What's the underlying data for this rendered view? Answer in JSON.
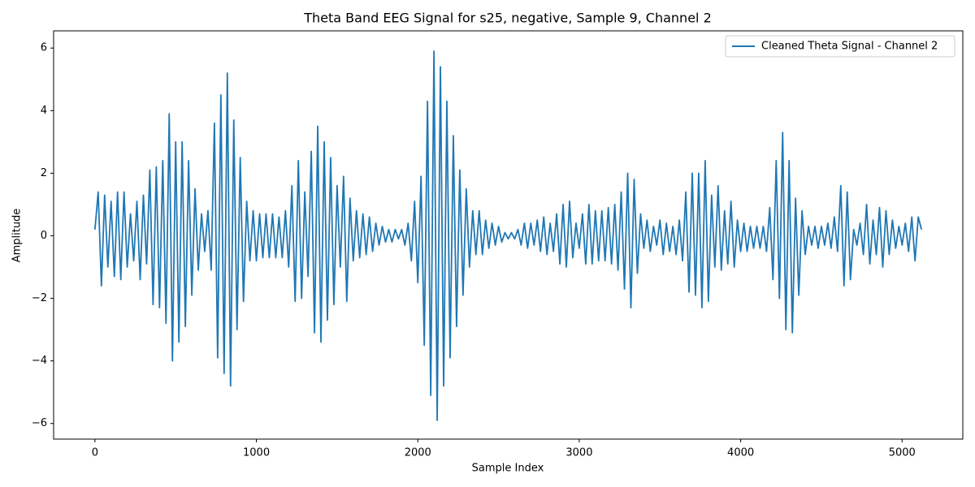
{
  "chart_data": {
    "type": "line",
    "title": "Theta Band EEG Signal for s25, negative, Sample 9, Channel 2",
    "x_label": "Sample Index",
    "y_label": "Amplitude",
    "x": [
      0,
      20,
      40,
      60,
      80,
      100,
      120,
      140,
      160,
      180,
      200,
      220,
      240,
      260,
      280,
      300,
      320,
      340,
      360,
      380,
      400,
      420,
      440,
      460,
      480,
      500,
      520,
      540,
      560,
      580,
      600,
      620,
      640,
      660,
      680,
      700,
      720,
      740,
      760,
      780,
      800,
      820,
      840,
      860,
      880,
      900,
      920,
      940,
      960,
      980,
      1000,
      1020,
      1040,
      1060,
      1080,
      1100,
      1120,
      1140,
      1160,
      1180,
      1200,
      1220,
      1240,
      1260,
      1280,
      1300,
      1320,
      1340,
      1360,
      1380,
      1400,
      1420,
      1440,
      1460,
      1480,
      1500,
      1520,
      1540,
      1560,
      1580,
      1600,
      1620,
      1640,
      1660,
      1680,
      1700,
      1720,
      1740,
      1760,
      1780,
      1800,
      1820,
      1840,
      1860,
      1880,
      1900,
      1920,
      1940,
      1960,
      1980,
      2000,
      2020,
      2040,
      2060,
      2080,
      2100,
      2120,
      2140,
      2160,
      2180,
      2200,
      2220,
      2240,
      2260,
      2280,
      2300,
      2320,
      2340,
      2360,
      2380,
      2400,
      2420,
      2440,
      2460,
      2480,
      2500,
      2520,
      2540,
      2560,
      2580,
      2600,
      2620,
      2640,
      2660,
      2680,
      2700,
      2720,
      2740,
      2760,
      2780,
      2800,
      2820,
      2840,
      2860,
      2880,
      2900,
      2920,
      2940,
      2960,
      2980,
      3000,
      3020,
      3040,
      3060,
      3080,
      3100,
      3120,
      3140,
      3160,
      3180,
      3200,
      3220,
      3240,
      3260,
      3280,
      3300,
      3320,
      3340,
      3360,
      3380,
      3400,
      3420,
      3440,
      3460,
      3480,
      3500,
      3520,
      3540,
      3560,
      3580,
      3600,
      3620,
      3640,
      3660,
      3680,
      3700,
      3720,
      3740,
      3760,
      3780,
      3800,
      3820,
      3840,
      3860,
      3880,
      3900,
      3920,
      3940,
      3960,
      3980,
      4000,
      4020,
      4040,
      4060,
      4080,
      4100,
      4120,
      4140,
      4160,
      4180,
      4200,
      4220,
      4240,
      4260,
      4280,
      4300,
      4320,
      4340,
      4360,
      4380,
      4400,
      4420,
      4440,
      4460,
      4480,
      4500,
      4520,
      4540,
      4560,
      4580,
      4600,
      4620,
      4640,
      4660,
      4680,
      4700,
      4720,
      4740,
      4760,
      4780,
      4800,
      4820,
      4840,
      4860,
      4880,
      4900,
      4920,
      4940,
      4960,
      4980,
      5000,
      5020,
      5040,
      5060,
      5080,
      5100,
      5120
    ],
    "series": [
      {
        "name": "Cleaned Theta Signal - Channel 2",
        "color": "#1f77b4",
        "values": [
          0.2,
          1.4,
          -1.6,
          1.3,
          -1.0,
          1.1,
          -1.3,
          1.4,
          -1.4,
          1.4,
          -1.0,
          0.7,
          -0.8,
          1.1,
          -1.4,
          1.3,
          -0.9,
          2.1,
          -2.2,
          2.2,
          -2.3,
          2.4,
          -2.8,
          3.9,
          -4.0,
          3.0,
          -3.4,
          3.0,
          -2.9,
          2.4,
          -1.9,
          1.5,
          -1.1,
          0.7,
          -0.5,
          0.8,
          -1.1,
          3.6,
          -3.9,
          4.5,
          -4.4,
          5.2,
          -4.8,
          3.7,
          -3.0,
          2.5,
          -2.1,
          1.1,
          -0.8,
          0.8,
          -0.8,
          0.7,
          -0.7,
          0.7,
          -0.7,
          0.7,
          -0.7,
          0.6,
          -0.7,
          0.8,
          -1.0,
          1.6,
          -2.1,
          2.4,
          -2.0,
          1.4,
          -1.3,
          2.7,
          -3.1,
          3.5,
          -3.4,
          3.0,
          -2.7,
          2.5,
          -2.2,
          1.6,
          -1.0,
          1.9,
          -2.1,
          1.2,
          -0.8,
          0.8,
          -0.7,
          0.7,
          -0.6,
          0.6,
          -0.5,
          0.4,
          -0.3,
          0.3,
          -0.2,
          0.2,
          -0.2,
          0.2,
          -0.1,
          0.2,
          -0.3,
          0.4,
          -0.8,
          1.1,
          -1.5,
          1.9,
          -3.5,
          4.3,
          -5.1,
          5.9,
          -5.9,
          5.4,
          -4.8,
          4.3,
          -3.9,
          3.2,
          -2.9,
          2.1,
          -1.9,
          1.5,
          -1.0,
          0.8,
          -0.6,
          0.8,
          -0.6,
          0.5,
          -0.4,
          0.4,
          -0.3,
          0.3,
          -0.2,
          0.1,
          -0.1,
          0.1,
          -0.1,
          0.2,
          -0.3,
          0.4,
          -0.4,
          0.4,
          -0.3,
          0.5,
          -0.5,
          0.6,
          -0.6,
          0.4,
          -0.5,
          0.7,
          -0.9,
          1.0,
          -1.0,
          1.1,
          -0.7,
          0.4,
          -0.4,
          0.7,
          -0.9,
          1.0,
          -0.9,
          0.8,
          -0.8,
          0.8,
          -0.8,
          0.9,
          -0.9,
          1.0,
          -1.1,
          1.4,
          -1.7,
          2.0,
          -2.3,
          1.8,
          -1.2,
          0.7,
          -0.4,
          0.5,
          -0.5,
          0.3,
          -0.3,
          0.5,
          -0.6,
          0.4,
          -0.5,
          0.3,
          -0.6,
          0.5,
          -0.8,
          1.4,
          -1.8,
          2.0,
          -1.9,
          2.0,
          -2.3,
          2.4,
          -2.1,
          1.3,
          -1.0,
          1.6,
          -1.1,
          0.8,
          -0.9,
          1.1,
          -1.0,
          0.5,
          -0.5,
          0.4,
          -0.5,
          0.3,
          -0.4,
          0.3,
          -0.4,
          0.3,
          -0.5,
          0.9,
          -1.4,
          2.4,
          -2.0,
          3.3,
          -3.0,
          2.4,
          -3.1,
          1.2,
          -1.9,
          0.8,
          -0.6,
          0.3,
          -0.3,
          0.3,
          -0.4,
          0.3,
          -0.3,
          0.4,
          -0.4,
          0.6,
          -0.5,
          1.6,
          -1.6,
          1.4,
          -1.4,
          0.2,
          -0.3,
          0.4,
          -0.6,
          1.0,
          -0.9,
          0.5,
          -0.6,
          0.9,
          -1.0,
          0.8,
          -0.6,
          0.5,
          -0.4,
          0.3,
          -0.3,
          0.4,
          -0.5,
          0.6,
          -0.8,
          0.6,
          0.2
        ]
      }
    ],
    "xlim": [
      -256,
      5376
    ],
    "ylim": [
      -6.5,
      6.55
    ],
    "xticks": [
      0,
      1000,
      2000,
      3000,
      4000,
      5000
    ],
    "yticks": [
      {
        "value": -6,
        "label": "−6"
      },
      {
        "value": -4,
        "label": "−4"
      },
      {
        "value": -2,
        "label": "−2"
      },
      0,
      2,
      4,
      6
    ],
    "grid": false,
    "legend": "upper right"
  }
}
